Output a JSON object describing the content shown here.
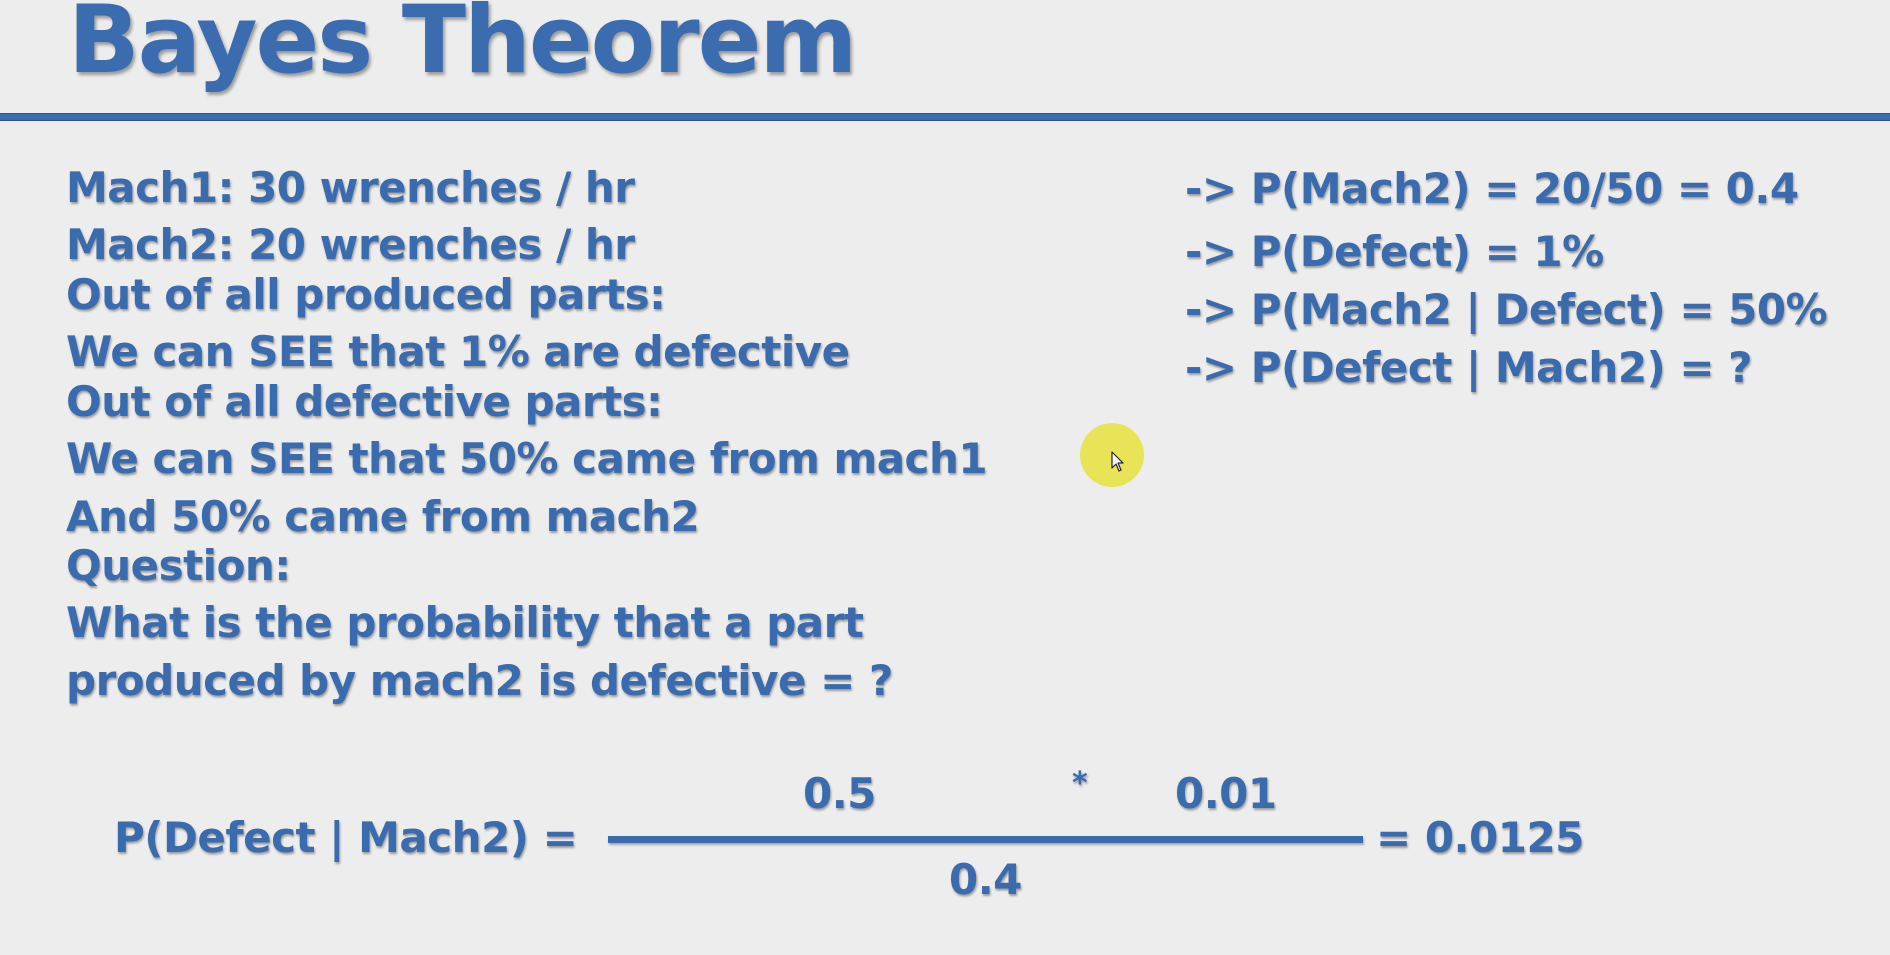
{
  "title": "Bayes Theorem",
  "left_lines": [
    "Mach1: 30 wrenches / hr",
    "Mach2: 20 wrenches / hr",
    "Out of all produced parts:",
    "We can SEE that 1% are defective",
    "Out of all defective parts:",
    "We can SEE that 50% came from mach1",
    "And 50% came from mach2",
    "Question:",
    "What is the probability that a part",
    "produced by mach2 is defective = ?"
  ],
  "right_lines": [
    "-> P(Mach2) = 20/50 = 0.4",
    "-> P(Defect) = 1%",
    "-> P(Mach2 | Defect) = 50%",
    "-> P(Defect | Mach2) = ?"
  ],
  "formula": {
    "lhs": "P(Defect | Mach2) =",
    "numerator_a": "0.5",
    "operator": "*",
    "numerator_b": "0.01",
    "denominator": "0.4",
    "result": "= 0.0125"
  },
  "colors": {
    "text": "#3a6bae",
    "background": "#ededed",
    "cursor_highlight": "#e8e13c"
  }
}
